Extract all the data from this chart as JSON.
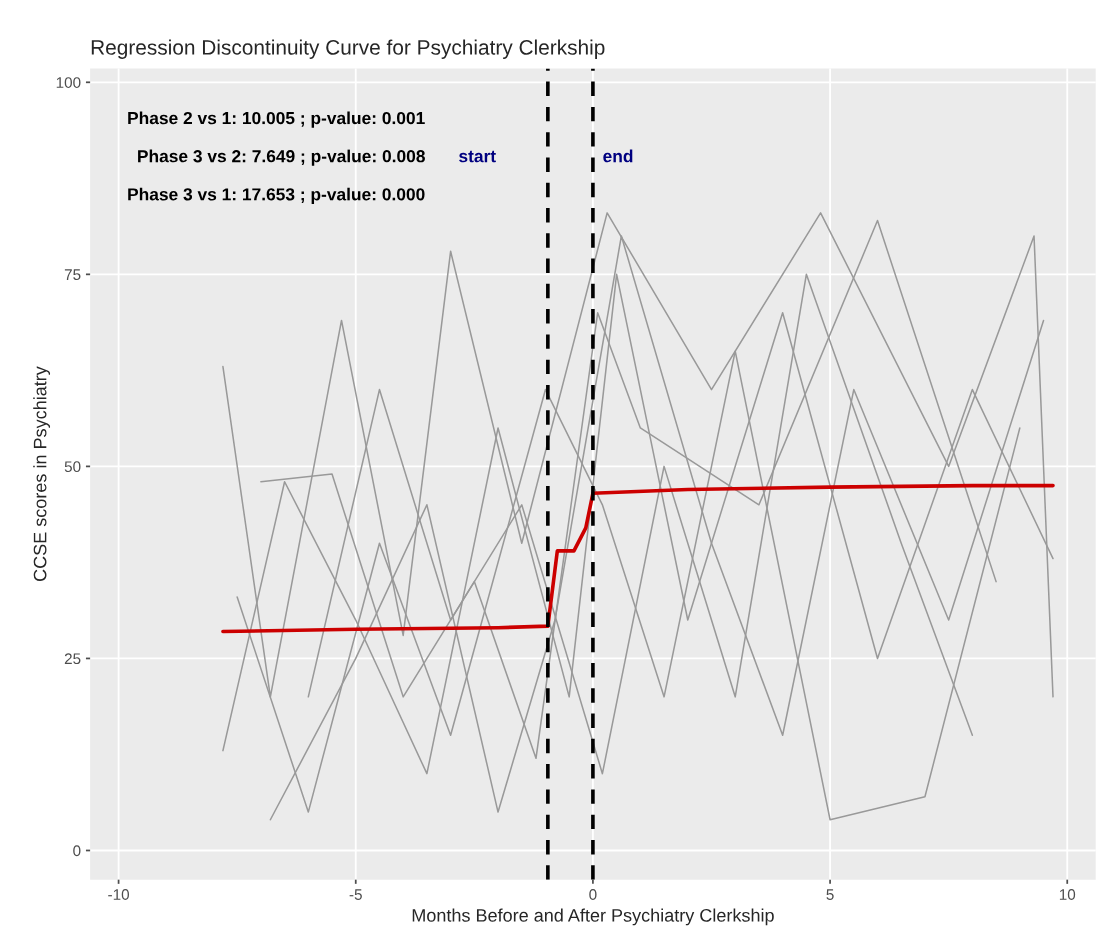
{
  "chart_data": {
    "type": "line",
    "title": "Regression Discontinuity Curve for Psychiatry Clerkship",
    "xlabel": "Months Before and After Psychiatry Clerkship",
    "ylabel": "CCSE scores in Psychiatry",
    "xlim": [
      -10.6,
      10.6
    ],
    "ylim": [
      -3.8,
      101.8
    ],
    "xticks": [
      -10,
      -5,
      0,
      5,
      10
    ],
    "yticks": [
      0,
      25,
      50,
      75,
      100
    ],
    "grid": true,
    "legend": false,
    "marker": "none",
    "line_style": "solid",
    "series": [
      {
        "color": "#999999",
        "x": [
          -7.8,
          -6.8,
          -5.3,
          -4.0,
          -3.0,
          -1.5,
          0.3,
          2.5,
          4.8,
          7.5,
          9.3,
          9.7
        ],
        "values": [
          63,
          20,
          69,
          28,
          78,
          40,
          83,
          60,
          83,
          50,
          80,
          20
        ]
      },
      {
        "color": "#999999",
        "x": [
          -7.8,
          -6.5,
          -5.0,
          -3.5,
          -2.0,
          -0.5,
          0.5,
          2.0,
          4.0,
          6.0,
          8.0,
          9.7
        ],
        "values": [
          13,
          48,
          30,
          10,
          55,
          20,
          75,
          30,
          70,
          25,
          60,
          38
        ]
      },
      {
        "color": "#999999",
        "x": [
          -7.5,
          -6.0,
          -4.5,
          -3.0,
          -1.0,
          0.2,
          1.5,
          3.0,
          5.0,
          7.0,
          9.0
        ],
        "values": [
          33,
          5,
          40,
          15,
          60,
          45,
          20,
          65,
          4,
          7,
          55
        ]
      },
      {
        "color": "#999999",
        "x": [
          -6.8,
          -5.0,
          -3.5,
          -2.0,
          -0.8,
          0.6,
          2.5,
          4.0,
          5.5,
          7.5,
          9.5
        ],
        "values": [
          4,
          25,
          45,
          5,
          30,
          80,
          40,
          15,
          60,
          30,
          69
        ]
      },
      {
        "color": "#999999",
        "x": [
          -7.0,
          -5.5,
          -4.0,
          -2.5,
          -1.2,
          0.1,
          1.0,
          3.5,
          6.0,
          8.5
        ],
        "values": [
          48,
          49,
          20,
          35,
          12,
          70,
          55,
          45,
          82,
          35
        ]
      },
      {
        "color": "#999999",
        "x": [
          -6.0,
          -4.5,
          -3.0,
          -1.5,
          0.2,
          1.5,
          3.0,
          4.5,
          6.5,
          8.0
        ],
        "values": [
          20,
          60,
          30,
          45,
          10,
          50,
          20,
          75,
          40,
          15
        ]
      },
      {
        "color": "#cc0000",
        "x": [
          -7.8,
          -5.0,
          -2.0,
          -0.95,
          -0.75,
          -0.4,
          -0.15,
          0.0,
          2.0,
          5.0,
          8.0,
          9.7
        ],
        "values": [
          28.5,
          28.8,
          29.0,
          29.2,
          39.0,
          39.0,
          42.0,
          46.5,
          47.0,
          47.3,
          47.5,
          47.5
        ]
      }
    ],
    "ref_lines": [
      {
        "axis": "x",
        "value": -0.95,
        "color": "#000000",
        "line_style": "dashed"
      },
      {
        "axis": "x",
        "value": 0,
        "color": "#000000",
        "line_style": "dashed"
      }
    ],
    "annotations": [
      "Phase 2 vs 1: 10.005 ; p-value: 0.001",
      "Phase 3 vs 2: 7.649 ; p-value: 0.008",
      "Phase 3 vs 1: 17.653 ; p-value: 0.000",
      "start",
      "end"
    ]
  }
}
